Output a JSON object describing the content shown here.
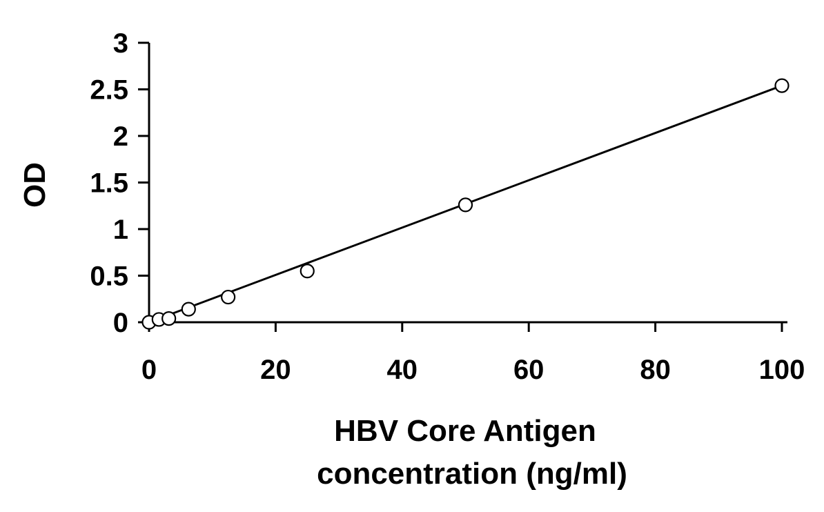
{
  "chart_data": {
    "type": "scatter",
    "title": "",
    "xlabel_lines": [
      "HBV Core Antigen",
      "concentration (ng/ml)"
    ],
    "ylabel": "OD",
    "xlim": [
      0,
      100
    ],
    "ylim": [
      0,
      3
    ],
    "x_ticks": [
      0,
      20,
      40,
      60,
      80,
      100
    ],
    "y_ticks": [
      0,
      0.5,
      1,
      1.5,
      2,
      2.5,
      3
    ],
    "grid": false,
    "legend": "none",
    "series": [
      {
        "marker": "open-circle",
        "x": [
          0,
          1.5625,
          3.125,
          6.25,
          12.5,
          25,
          50,
          100
        ],
        "y": [
          0.0,
          0.03,
          0.04,
          0.14,
          0.27,
          0.55,
          1.26,
          2.54
        ]
      }
    ],
    "trendline": {
      "type": "linear",
      "x": [
        0,
        100
      ],
      "y": [
        0.0,
        2.54
      ]
    },
    "colors": {
      "axis": "#000000",
      "marker_stroke": "#000000",
      "marker_fill": "#ffffff",
      "line": "#000000"
    }
  }
}
